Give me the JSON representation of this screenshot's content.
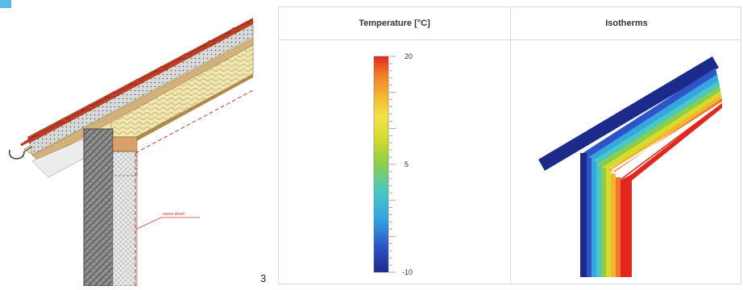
{
  "figure": {
    "number": "3",
    "detail_label": "eaves detail"
  },
  "table": {
    "temperature_header": "Temperature [°C]",
    "isotherms_header": "Isotherms"
  },
  "scale": {
    "max_label": "20",
    "mid_label": "5",
    "min_label": "-10",
    "max_value": 20,
    "mid_value": 5,
    "min_value": -10,
    "gradient_colors": [
      "#1c2a8a",
      "#2e54c8",
      "#35a6e0",
      "#4ac9c4",
      "#8ccd4c",
      "#d6dc2c",
      "#f3e14a",
      "#f6b530",
      "#f1782a",
      "#e2271f"
    ]
  },
  "isotherm_colors": {
    "cold": "#1c2a8a",
    "warm": "#e2271f"
  }
}
